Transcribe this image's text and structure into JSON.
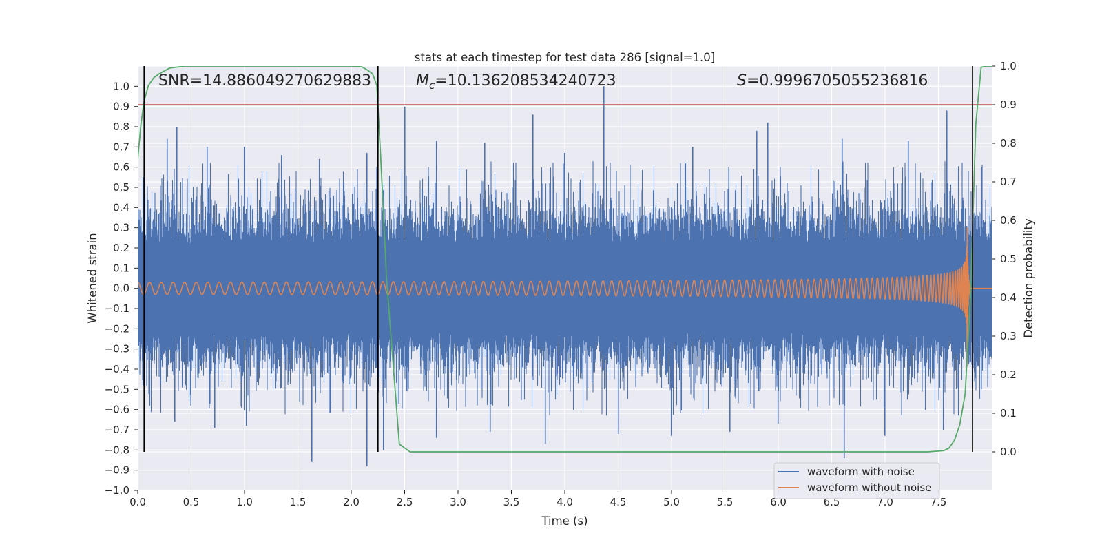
{
  "chart_data": {
    "type": "line",
    "title": "stats at each timestep for test data 286 [signal=1.0]",
    "xlabel": "Time (s)",
    "ylabel_left": "Whitened strain",
    "ylabel_right": "Detection probability",
    "xlim": [
      0.0,
      8.0
    ],
    "ylim_left": [
      -1.0,
      1.1
    ],
    "ylim_right": [
      -0.1,
      1.0
    ],
    "x_ticks": [
      "0.0",
      "0.5",
      "1.0",
      "1.5",
      "2.0",
      "2.5",
      "3.0",
      "3.5",
      "4.0",
      "4.5",
      "5.0",
      "5.5",
      "6.0",
      "6.5",
      "7.0",
      "7.5"
    ],
    "y_ticks_left": [
      "-1.0",
      "-0.9",
      "-0.8",
      "-0.7",
      "-0.6",
      "-0.5",
      "-0.4",
      "-0.3",
      "-0.2",
      "-0.1",
      "0.0",
      "0.1",
      "0.2",
      "0.3",
      "0.4",
      "0.5",
      "0.6",
      "0.7",
      "0.8",
      "0.9",
      "1.0"
    ],
    "y_ticks_right": [
      "0.0",
      "0.1",
      "0.2",
      "0.3",
      "0.4",
      "0.5",
      "0.6",
      "0.7",
      "0.8",
      "0.9",
      "1.0"
    ],
    "grid": true,
    "legend_position": "lower-right",
    "annotations": {
      "snr": "SNR=14.886049270629883",
      "mc_symbol": "M",
      "mc_subscript": "c",
      "mc_value": "=10.136208534240723",
      "s_symbol": "S",
      "s_value": "=0.9996705055236816"
    },
    "threshold": {
      "axis": "right",
      "value": 0.9,
      "color": "#c44e52"
    },
    "vertical_lines": [
      0.06,
      2.25,
      7.82
    ],
    "series": [
      {
        "name": "waveform with noise",
        "axis": "left",
        "color": "#4c72b0",
        "envelope_t": [
          0.0,
          0.5,
          1.0,
          1.5,
          2.0,
          2.5,
          3.0,
          3.5,
          4.0,
          4.5,
          5.0,
          5.5,
          6.0,
          6.5,
          7.0,
          7.3,
          7.5,
          7.6,
          7.7,
          7.75,
          7.8,
          8.0
        ],
        "envelope_upper": [
          0.3,
          0.3,
          0.3,
          0.3,
          0.3,
          0.3,
          0.3,
          0.3,
          0.3,
          0.3,
          0.3,
          0.3,
          0.3,
          0.3,
          0.3,
          0.3,
          0.3,
          0.3,
          0.3,
          0.3,
          0.3,
          0.3
        ],
        "spikes_up": [
          [
            0.05,
            0.55
          ],
          [
            0.28,
            0.74
          ],
          [
            0.37,
            0.8
          ],
          [
            0.65,
            0.7
          ],
          [
            1.0,
            0.7
          ],
          [
            1.35,
            0.66
          ],
          [
            1.7,
            0.64
          ],
          [
            2.15,
            0.67
          ],
          [
            2.5,
            0.9
          ],
          [
            2.8,
            0.73
          ],
          [
            3.7,
            0.86
          ],
          [
            3.25,
            0.72
          ],
          [
            4.37,
            1.0
          ],
          [
            4.0,
            0.67
          ],
          [
            5.2,
            0.7
          ],
          [
            5.9,
            0.82
          ],
          [
            5.8,
            0.78
          ],
          [
            6.6,
            0.74
          ],
          [
            7.22,
            0.73
          ],
          [
            7.58,
            0.88
          ],
          [
            7.9,
            0.6
          ]
        ],
        "spikes_down": [
          [
            0.05,
            -0.48
          ],
          [
            0.35,
            -0.66
          ],
          [
            0.72,
            -0.69
          ],
          [
            1.02,
            -0.68
          ],
          [
            1.63,
            -0.86
          ],
          [
            2.15,
            -0.88
          ],
          [
            2.3,
            -0.8
          ],
          [
            2.8,
            -0.74
          ],
          [
            3.3,
            -0.71
          ],
          [
            3.82,
            -0.77
          ],
          [
            4.5,
            -0.72
          ],
          [
            5.0,
            -0.73
          ],
          [
            5.55,
            -0.71
          ],
          [
            6.0,
            -0.67
          ],
          [
            6.62,
            -0.84
          ],
          [
            7.0,
            -0.73
          ],
          [
            7.55,
            -0.7
          ],
          [
            7.9,
            -0.5
          ]
        ]
      },
      {
        "name": "waveform without noise",
        "axis": "left",
        "color": "#dd8452",
        "chirp": {
          "t_start": 0.0,
          "t_merge": 7.77,
          "t_end": 8.0,
          "start_freq_hz": 9.0,
          "start_amplitude": 0.03,
          "peak_upper": 0.68,
          "peak_lower": -0.47
        }
      },
      {
        "name": "detection probability",
        "axis": "right",
        "color": "#55a868",
        "x": [
          0.0,
          0.03,
          0.06,
          0.1,
          0.15,
          0.2,
          0.3,
          0.45,
          0.6,
          1.0,
          1.5,
          2.0,
          2.1,
          2.15,
          2.2,
          2.24,
          2.28,
          2.33,
          2.4,
          2.45,
          2.55,
          2.7,
          3.0,
          4.0,
          5.0,
          6.0,
          7.0,
          7.4,
          7.55,
          7.6,
          7.65,
          7.7,
          7.75,
          7.8,
          7.85,
          7.9,
          7.95,
          8.0
        ],
        "y": [
          0.76,
          0.85,
          0.91,
          0.95,
          0.97,
          0.98,
          0.995,
          1.0,
          1.0,
          1.0,
          1.0,
          1.0,
          0.998,
          0.99,
          0.98,
          0.95,
          0.74,
          0.45,
          0.2,
          0.02,
          0.0,
          0.0,
          0.0,
          0.0,
          0.0,
          0.0,
          0.0,
          0.0,
          0.003,
          0.01,
          0.03,
          0.07,
          0.15,
          0.4,
          0.85,
          0.997,
          1.0,
          1.0
        ]
      }
    ]
  }
}
